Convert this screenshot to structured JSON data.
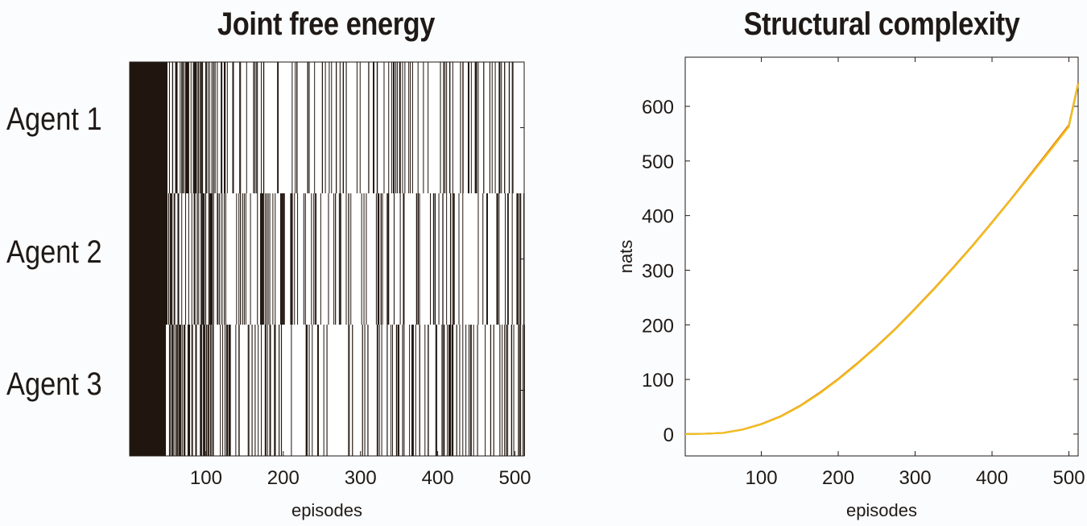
{
  "chart_data": [
    {
      "type": "heatmap",
      "title": "Joint free energy",
      "xlabel": "episodes",
      "ylabel": "",
      "xlim": [
        1,
        512
      ],
      "xticks": [
        100,
        200,
        300,
        400,
        500
      ],
      "rows": [
        "Agent 1",
        "Agent 2",
        "Agent 3"
      ],
      "colors": {
        "fill": "#21160f",
        "background": "#ffffff",
        "frame": "#1f1a17"
      },
      "description_values": "binary per-episode black/white bars for each agent; early episodes (about 1-50) solid black, afterwards sparse black lines",
      "solid_black_until": [
        50,
        50,
        48
      ]
    },
    {
      "type": "line",
      "title": "Structural complexity",
      "xlabel": "episodes",
      "ylabel": "nats",
      "xlim": [
        1,
        512
      ],
      "ylim": [
        -40,
        690
      ],
      "xticks": [
        100,
        200,
        300,
        400,
        500
      ],
      "yticks": [
        0,
        100,
        200,
        300,
        400,
        500,
        600
      ],
      "x": [
        1,
        25,
        50,
        75,
        100,
        125,
        150,
        175,
        200,
        225,
        250,
        275,
        300,
        325,
        350,
        375,
        400,
        425,
        450,
        475,
        500,
        512
      ],
      "series": [
        {
          "color": "#6b5a1c",
          "values": [
            0,
            0.5,
            2,
            8,
            18,
            32,
            51,
            74,
            100,
            129,
            160,
            193,
            229,
            266,
            305,
            345,
            387,
            430,
            474,
            518,
            563,
            640
          ]
        },
        {
          "color": "#e58a16",
          "values": [
            0,
            0.6,
            2.2,
            8.3,
            18.5,
            32.6,
            51.8,
            75,
            101,
            130,
            161,
            194,
            230,
            267,
            306,
            346,
            388,
            431,
            476,
            521,
            566,
            643
          ]
        },
        {
          "color": "#f2c21f",
          "values": [
            0,
            0.4,
            1.9,
            7.8,
            17.6,
            31.5,
            50.5,
            73.3,
            99.4,
            128.4,
            159.5,
            192.6,
            228.4,
            265.4,
            304.4,
            344.5,
            386.5,
            429.6,
            473.6,
            517.8,
            562.5,
            641
          ]
        }
      ]
    }
  ]
}
